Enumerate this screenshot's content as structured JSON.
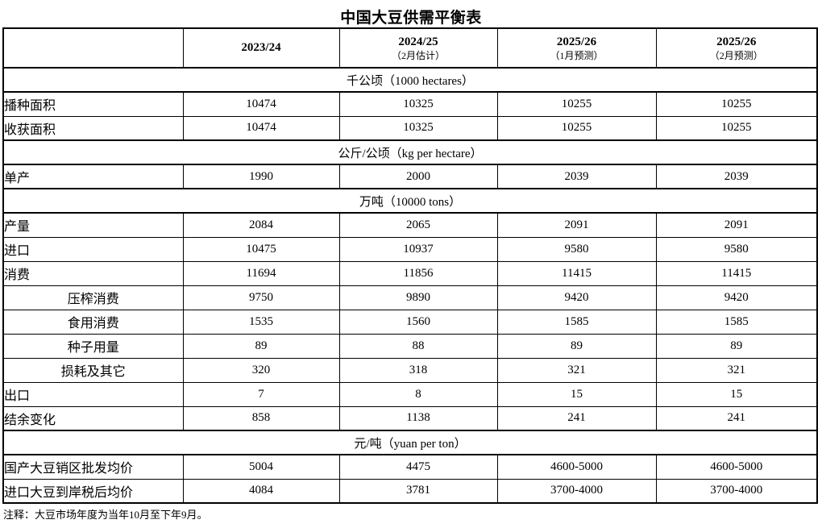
{
  "title": "中国大豆供需平衡表",
  "note": "注释：大豆市场年度为当年10月至下年9月。",
  "table": {
    "corner_label": "",
    "columns": [
      {
        "year": "2023/24",
        "subtitle": ""
      },
      {
        "year": "2024/25",
        "subtitle": "（2月估计）"
      },
      {
        "year": "2025/26",
        "subtitle": "（1月预测）"
      },
      {
        "year": "2025/26",
        "subtitle": "（2月预测）"
      }
    ],
    "rows": [
      {
        "type": "section",
        "label": "千公顷（1000 hectares）"
      },
      {
        "type": "data",
        "label": "播种面积",
        "indent": false,
        "values": [
          "10474",
          "10325",
          "10255",
          "10255"
        ]
      },
      {
        "type": "data",
        "label": "收获面积",
        "indent": false,
        "values": [
          "10474",
          "10325",
          "10255",
          "10255"
        ]
      },
      {
        "type": "section",
        "label": "公斤/公顷（kg per hectare）"
      },
      {
        "type": "data",
        "label": "单产",
        "indent": false,
        "values": [
          "1990",
          "2000",
          "2039",
          "2039"
        ]
      },
      {
        "type": "section",
        "label": "万吨（10000 tons）"
      },
      {
        "type": "data",
        "label": "产量",
        "indent": false,
        "values": [
          "2084",
          "2065",
          "2091",
          "2091"
        ]
      },
      {
        "type": "data",
        "label": "进口",
        "indent": false,
        "values": [
          "10475",
          "10937",
          "9580",
          "9580"
        ]
      },
      {
        "type": "data",
        "label": "消费",
        "indent": false,
        "values": [
          "11694",
          "11856",
          "11415",
          "11415"
        ]
      },
      {
        "type": "data",
        "label": "压榨消费",
        "indent": true,
        "values": [
          "9750",
          "9890",
          "9420",
          "9420"
        ]
      },
      {
        "type": "data",
        "label": "食用消费",
        "indent": true,
        "values": [
          "1535",
          "1560",
          "1585",
          "1585"
        ]
      },
      {
        "type": "data",
        "label": "种子用量",
        "indent": true,
        "values": [
          "89",
          "88",
          "89",
          "89"
        ]
      },
      {
        "type": "data",
        "label": "损耗及其它",
        "indent": true,
        "values": [
          "320",
          "318",
          "321",
          "321"
        ]
      },
      {
        "type": "data",
        "label": "出口",
        "indent": false,
        "values": [
          "7",
          "8",
          "15",
          "15"
        ]
      },
      {
        "type": "data",
        "label": "结余变化",
        "indent": false,
        "values": [
          "858",
          "1138",
          "241",
          "241"
        ]
      },
      {
        "type": "section",
        "label": "元/吨（yuan per ton）"
      },
      {
        "type": "data",
        "label": "国产大豆销区批发均价",
        "indent": false,
        "values": [
          "5004",
          "4475",
          "4600-5000",
          "4600-5000"
        ]
      },
      {
        "type": "data",
        "label": "进口大豆到岸税后均价",
        "indent": false,
        "values": [
          "4084",
          "3781",
          "3700-4000",
          "3700-4000"
        ]
      }
    ]
  }
}
